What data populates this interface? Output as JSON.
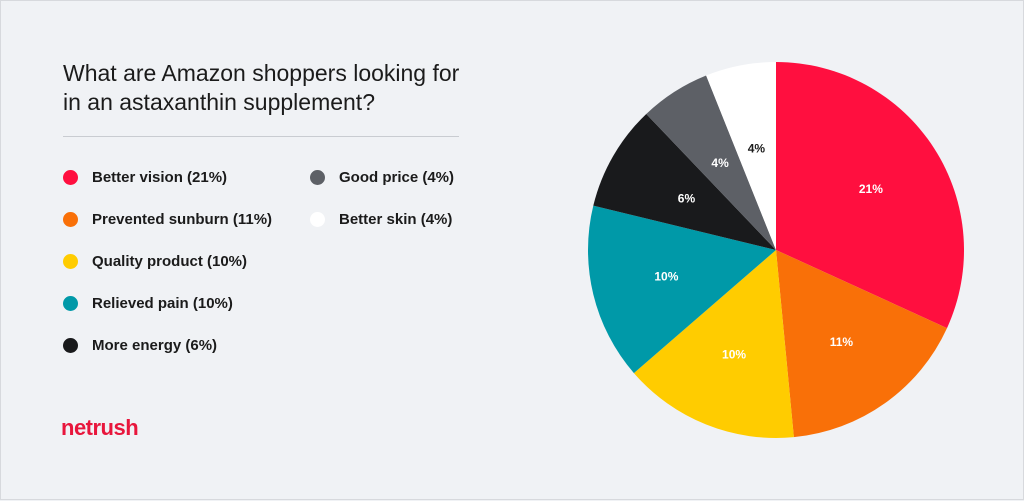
{
  "brand": "netrush",
  "chart_data": {
    "type": "pie",
    "title": "What are Amazon shoppers looking for in an astaxanthin supplement?",
    "slices": [
      {
        "label": "Better vision (21%)",
        "value": 21,
        "data_label": "21%",
        "color": "#ff0f3f"
      },
      {
        "label": "Prevented sunburn (11%)",
        "value": 11,
        "data_label": "11%",
        "color": "#f97008"
      },
      {
        "label": "Quality product (10%)",
        "value": 10,
        "data_label": "10%",
        "color": "#ffcc00"
      },
      {
        "label": "Relieved pain (10%)",
        "value": 10,
        "data_label": "10%",
        "color": "#0099a8"
      },
      {
        "label": "More energy (6%)",
        "value": 6,
        "data_label": "6%",
        "color": "#191a1c"
      },
      {
        "label": "Good price (4%)",
        "value": 4,
        "data_label": "4%",
        "color": "#5d6066"
      },
      {
        "label": "Better skin (4%)",
        "value": 4,
        "data_label": "4%",
        "color": "#ffffff"
      }
    ],
    "legend_placement": "left"
  }
}
